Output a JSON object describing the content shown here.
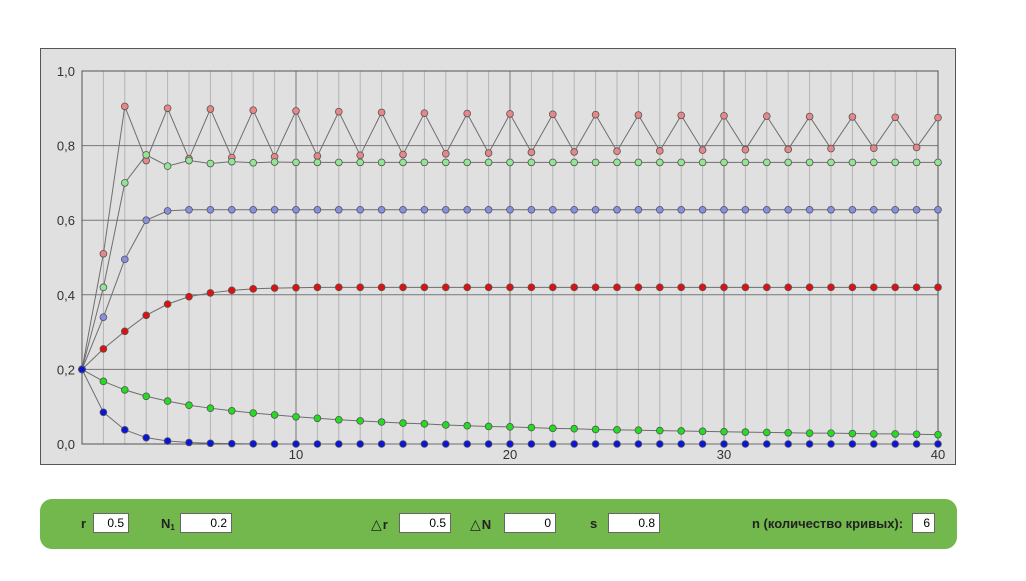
{
  "chart_data": {
    "type": "scatter",
    "xlim": [
      0,
      40
    ],
    "ylim": [
      0,
      1
    ],
    "x_ticks": [
      10,
      20,
      30,
      40
    ],
    "y_ticks": [
      "0,0",
      "0,2",
      "0,4",
      "0,6",
      "0,8",
      "1,0"
    ],
    "grid": true,
    "series": [
      {
        "color": "#e8878a",
        "values": [
          0.2,
          0.51,
          0.905,
          0.76,
          0.9,
          0.765,
          0.898,
          0.768,
          0.895,
          0.77,
          0.893,
          0.772,
          0.891,
          0.774,
          0.889,
          0.776,
          0.887,
          0.778,
          0.886,
          0.78,
          0.885,
          0.782,
          0.884,
          0.783,
          0.883,
          0.785,
          0.882,
          0.786,
          0.881,
          0.788,
          0.88,
          0.789,
          0.879,
          0.79,
          0.878,
          0.792,
          0.877,
          0.793,
          0.876,
          0.795,
          0.875
        ]
      },
      {
        "color": "#93e493",
        "values": [
          0.2,
          0.42,
          0.7,
          0.775,
          0.745,
          0.76,
          0.752,
          0.757,
          0.754,
          0.756,
          0.755,
          0.755,
          0.755,
          0.755,
          0.755,
          0.755,
          0.755,
          0.755,
          0.755,
          0.755,
          0.755,
          0.755,
          0.755,
          0.755,
          0.755,
          0.755,
          0.755,
          0.755,
          0.755,
          0.755,
          0.755,
          0.755,
          0.755,
          0.755,
          0.755,
          0.755,
          0.755,
          0.755,
          0.755,
          0.755,
          0.755
        ]
      },
      {
        "color": "#8590e0",
        "values": [
          0.2,
          0.34,
          0.495,
          0.6,
          0.625,
          0.628,
          0.628,
          0.628,
          0.628,
          0.628,
          0.628,
          0.628,
          0.628,
          0.628,
          0.628,
          0.628,
          0.628,
          0.628,
          0.628,
          0.628,
          0.628,
          0.628,
          0.628,
          0.628,
          0.628,
          0.628,
          0.628,
          0.628,
          0.628,
          0.628,
          0.628,
          0.628,
          0.628,
          0.628,
          0.628,
          0.628,
          0.628,
          0.628,
          0.628,
          0.628,
          0.628
        ]
      },
      {
        "color": "#e01010",
        "values": [
          0.2,
          0.255,
          0.302,
          0.345,
          0.375,
          0.395,
          0.405,
          0.412,
          0.416,
          0.418,
          0.419,
          0.42,
          0.42,
          0.42,
          0.42,
          0.42,
          0.42,
          0.42,
          0.42,
          0.42,
          0.42,
          0.42,
          0.42,
          0.42,
          0.42,
          0.42,
          0.42,
          0.42,
          0.42,
          0.42,
          0.42,
          0.42,
          0.42,
          0.42,
          0.42,
          0.42,
          0.42,
          0.42,
          0.42,
          0.42,
          0.42
        ]
      },
      {
        "color": "#22dd22",
        "values": [
          0.2,
          0.168,
          0.145,
          0.128,
          0.115,
          0.104,
          0.096,
          0.089,
          0.083,
          0.078,
          0.073,
          0.069,
          0.065,
          0.062,
          0.059,
          0.056,
          0.054,
          0.051,
          0.049,
          0.047,
          0.046,
          0.044,
          0.042,
          0.041,
          0.039,
          0.038,
          0.037,
          0.036,
          0.035,
          0.034,
          0.033,
          0.032,
          0.031,
          0.03,
          0.029,
          0.029,
          0.028,
          0.027,
          0.027,
          0.026,
          0.025
        ]
      },
      {
        "color": "#0a14dd",
        "values": [
          0.2,
          0.085,
          0.038,
          0.017,
          0.008,
          0.004,
          0.002,
          0.001,
          0.0005,
          0,
          0,
          0,
          0,
          0,
          0,
          0,
          0,
          0,
          0,
          0,
          0,
          0,
          0,
          0,
          0,
          0,
          0,
          0,
          0,
          0,
          0,
          0,
          0,
          0,
          0,
          0,
          0,
          0,
          0,
          0,
          0
        ]
      }
    ]
  },
  "controls": {
    "r_label": "r",
    "r_value": "0.5",
    "n1_label": "N",
    "n1_sub": "1",
    "n1_value": "0.2",
    "dr_tri": "△",
    "dr_label": "r",
    "dr_value": "0.5",
    "dn_tri": "△",
    "dn_label": "N",
    "dn_value": "0",
    "s_label": "s",
    "s_value": "0.8",
    "n_label": "n (количество кривых):",
    "n_value": "6"
  }
}
